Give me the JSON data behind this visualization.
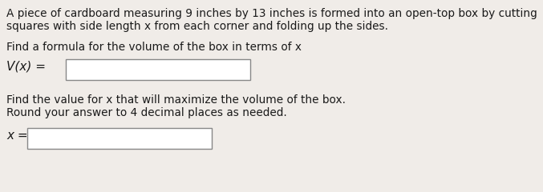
{
  "bg_color": "#f0ece8",
  "text_color": "#1a1a1a",
  "line1": "A piece of cardboard measuring 9 inches by 13 inches is formed into an open-top box by cutting",
  "line2": "squares with side length x from each corner and folding up the sides.",
  "line3": "Find a formula for the volume of the box in terms of x",
  "label_vx": "V(x) =",
  "line4": "Find the value for x that will maximize the volume of the box.",
  "line5": "Round your answer to 4 decimal places as needed.",
  "label_x": "x =",
  "font_size_body": 9.8,
  "font_size_label": 11.0,
  "box_edge_color": "#888888",
  "box_face_color": "#ffffff"
}
